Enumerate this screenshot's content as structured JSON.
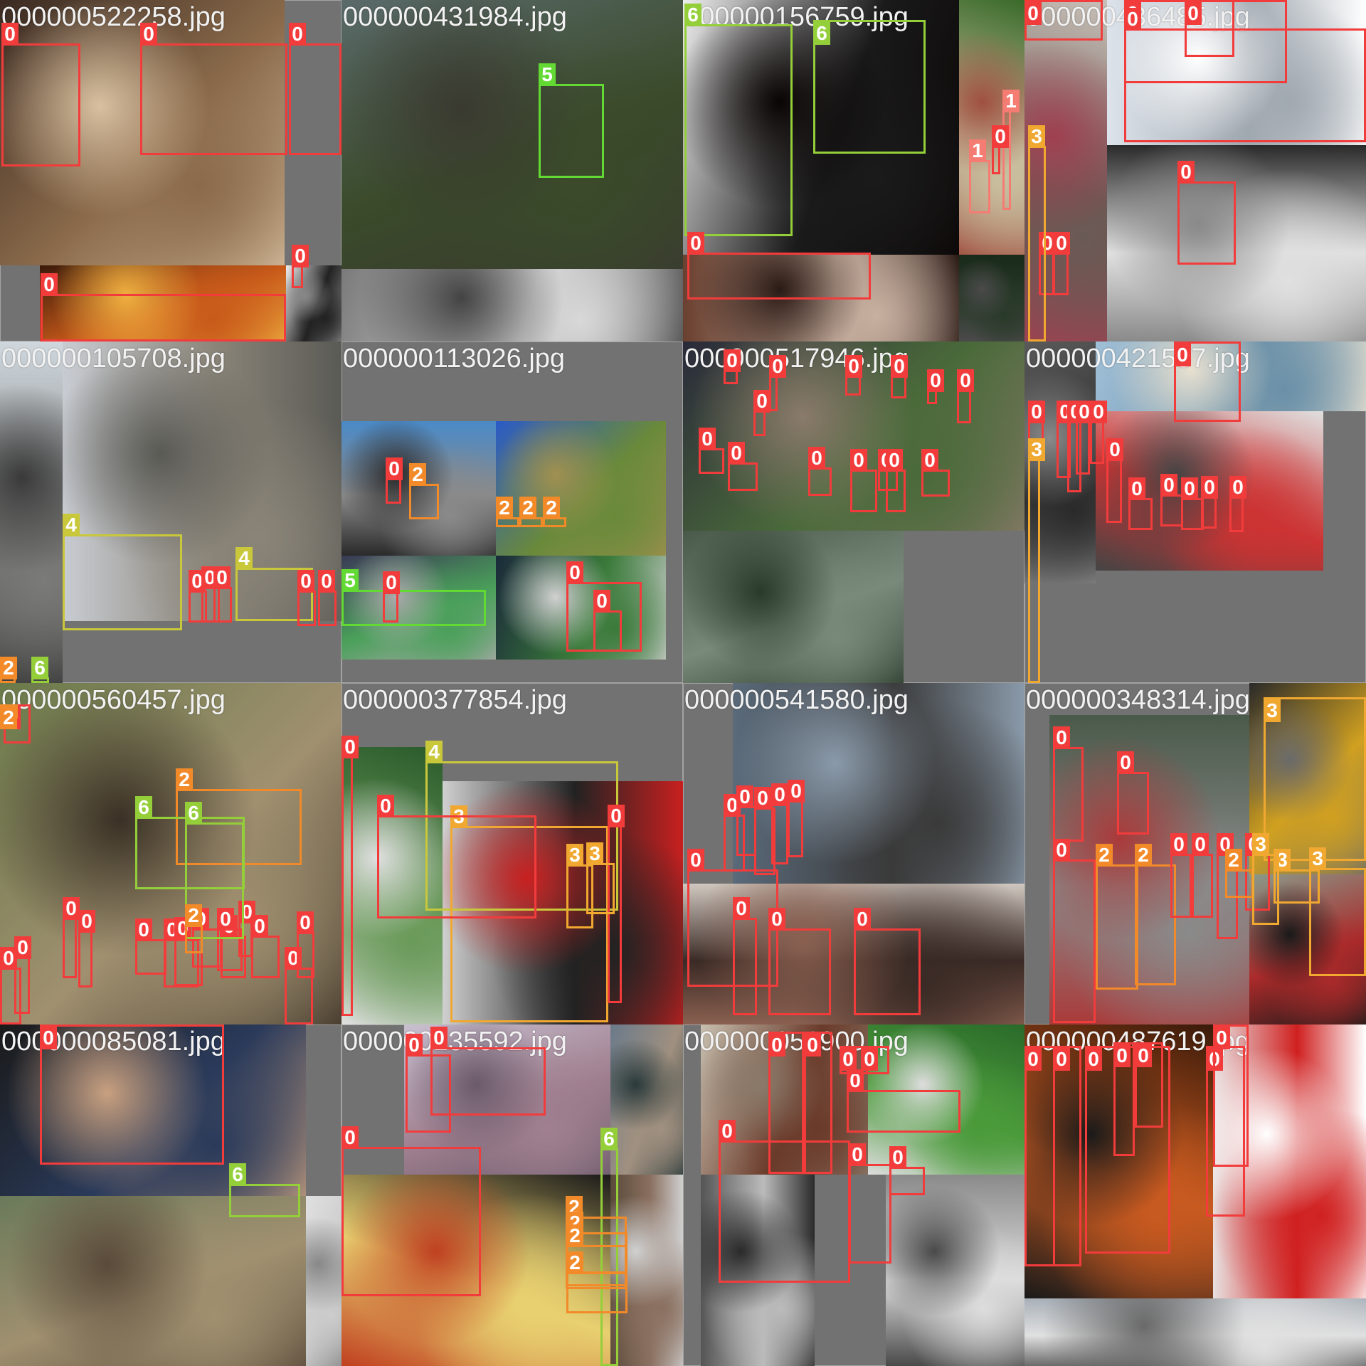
{
  "tiles": [
    {
      "filename": "000000522258.jpg",
      "photos": [
        {
          "colors": [
            "#3a2a22",
            "#8a6a4a",
            "#d8c0a0"
          ]
        },
        {
          "colors": [
            "#3a1a0a",
            "#c85a1a",
            "#f0b040"
          ]
        },
        {
          "colors": [
            "#eeeeee",
            "#222222",
            "#888888"
          ]
        }
      ],
      "boxes": [
        {
          "cls": "0"
        },
        {
          "cls": "0"
        },
        {
          "cls": "0"
        },
        {
          "cls": "0"
        },
        {
          "cls": "0"
        }
      ]
    },
    {
      "filename": "000000431984.jpg",
      "photos": [
        {
          "colors": [
            "#5a6a6a",
            "#3a4a2a",
            "#3a3a30"
          ]
        },
        {
          "colors": [
            "#7a7a7a",
            "#d8d8d8",
            "#444444"
          ]
        }
      ],
      "boxes": [
        {
          "cls": "5"
        }
      ]
    },
    {
      "filename": "000000156759.jpg",
      "photos": [
        {
          "colors": [
            "#eeeeee",
            "#1a1a1a",
            "#0a0505"
          ]
        },
        {
          "colors": [
            "#3a6a2a",
            "#c9c0a0",
            "#a05040"
          ]
        },
        {
          "colors": [
            "#6a4030",
            "#c8b0a0",
            "#2a1a15"
          ]
        },
        {
          "colors": [
            "#1a2a1a",
            "#2a3a2a",
            "#4a4a4a"
          ]
        }
      ],
      "boxes": [
        {
          "cls": "6"
        },
        {
          "cls": "6"
        },
        {
          "cls": "1"
        },
        {
          "cls": "1"
        },
        {
          "cls": "0"
        },
        {
          "cls": "0"
        }
      ]
    },
    {
      "filename": "000000436485.jpg",
      "photos": [
        {
          "colors": [
            "#c8c0b8",
            "#6a5a55",
            "#a04050"
          ]
        },
        {
          "colors": [
            "#dde3ea",
            "#a0a8b0",
            "#ffffff"
          ]
        },
        {
          "colors": [
            "#2a2a2a",
            "#e0e0e0",
            "#8a8a8a"
          ]
        }
      ],
      "boxes": [
        {
          "cls": "0"
        },
        {
          "cls": "0"
        },
        {
          "cls": "0"
        },
        {
          "cls": "0"
        },
        {
          "cls": "0"
        },
        {
          "cls": "0"
        },
        {
          "cls": "0"
        },
        {
          "cls": "3"
        }
      ]
    },
    {
      "filename": "000000105708.jpg",
      "photos": [
        {
          "colors": [
            "#c8ccd2",
            "#8a8478",
            "#5a5a55"
          ]
        },
        {
          "colors": [
            "#d0d8de",
            "#7a7a78",
            "#3a3a3a"
          ]
        }
      ],
      "boxes": [
        {
          "cls": "4"
        },
        {
          "cls": "4"
        },
        {
          "cls": "0"
        },
        {
          "cls": "0"
        },
        {
          "cls": "0"
        },
        {
          "cls": "0"
        },
        {
          "cls": "0"
        },
        {
          "cls": "2"
        },
        {
          "cls": "6"
        }
      ]
    },
    {
      "filename": "000000113026.jpg",
      "photos": [
        {
          "colors": [
            "#4a8ac8",
            "#8a8a8a",
            "#2a2a2a"
          ]
        },
        {
          "colors": [
            "#2a5ac8",
            "#6a8a3a",
            "#a09050"
          ]
        },
        {
          "colors": [
            "#3a3a55",
            "#4aa05a",
            "#aaaaaa"
          ]
        },
        {
          "colors": [
            "#1a2a3a",
            "#3a7a3a",
            "#d0d0d0"
          ]
        }
      ],
      "boxes": [
        {
          "cls": "2"
        },
        {
          "cls": "0"
        },
        {
          "cls": "2"
        },
        {
          "cls": "2"
        },
        {
          "cls": "2"
        },
        {
          "cls": "5"
        },
        {
          "cls": "0"
        },
        {
          "cls": "0"
        },
        {
          "cls": "0"
        }
      ]
    },
    {
      "filename": "000000517946.jpg",
      "photos": [
        {
          "colors": [
            "#2a2a3a",
            "#4a6a3a",
            "#8a7a6a"
          ]
        },
        {
          "colors": [
            "#4a5a4a",
            "#7a8a7a",
            "#2a3a2a"
          ]
        }
      ],
      "boxes": [
        {
          "cls": "0"
        },
        {
          "cls": "0"
        },
        {
          "cls": "0"
        },
        {
          "cls": "0"
        },
        {
          "cls": "0"
        },
        {
          "cls": "0"
        },
        {
          "cls": "0"
        },
        {
          "cls": "0"
        },
        {
          "cls": "0"
        },
        {
          "cls": "0"
        },
        {
          "cls": "0"
        },
        {
          "cls": "0"
        },
        {
          "cls": "0"
        },
        {
          "cls": "0"
        }
      ]
    },
    {
      "filename": "000000421557.jpg",
      "photos": [
        {
          "colors": [
            "#5a5a5a",
            "#2a2a2a",
            "#8a8a8a"
          ]
        },
        {
          "colors": [
            "#a0c0d8",
            "#6a90a8",
            "#e8e0d0"
          ]
        },
        {
          "colors": [
            "#e0e0e0",
            "#cc3333",
            "#444444"
          ]
        }
      ],
      "boxes": [
        {
          "cls": "0"
        },
        {
          "cls": "0"
        },
        {
          "cls": "0"
        },
        {
          "cls": "0"
        },
        {
          "cls": "0"
        },
        {
          "cls": "0"
        },
        {
          "cls": "0"
        },
        {
          "cls": "0"
        },
        {
          "cls": "0"
        },
        {
          "cls": "0"
        },
        {
          "cls": "0"
        },
        {
          "cls": "0"
        },
        {
          "cls": "3"
        }
      ]
    },
    {
      "filename": "000000560457.jpg",
      "photos": [
        {
          "colors": [
            "#3a3a3a",
            "#8a8a8a",
            "#3ac060"
          ]
        },
        {
          "colors": [
            "#4a8a3a",
            "#8aaa5a",
            "#c0c0c0"
          ]
        },
        {
          "colors": [
            "#3a4a2a",
            "#e0d030",
            "#f0f0f0"
          ]
        },
        {
          "colors": [
            "#1a1a1a",
            "#3a3a55",
            "#d0a070"
          ]
        },
        {
          "colors": [
            "#6a7a4a",
            "#a09070",
            "#3a3025"
          ]
        }
      ],
      "boxes": [
        {
          "cls": "2"
        },
        {
          "cls": "6"
        },
        {
          "cls": "0"
        },
        {
          "cls": "0"
        },
        {
          "cls": "0"
        },
        {
          "cls": "0"
        },
        {
          "cls": "0"
        },
        {
          "cls": "0"
        },
        {
          "cls": "0"
        },
        {
          "cls": "0"
        },
        {
          "cls": "0"
        },
        {
          "cls": "0"
        },
        {
          "cls": "0"
        },
        {
          "cls": "0"
        },
        {
          "cls": "0"
        },
        {
          "cls": "0"
        },
        {
          "cls": "0"
        },
        {
          "cls": "6"
        },
        {
          "cls": "2"
        },
        {
          "cls": "2"
        }
      ]
    },
    {
      "filename": "000000377854.jpg",
      "photos": [
        {
          "colors": [
            "#2a5a2a",
            "#6a9a5a",
            "#e0e0e0"
          ]
        },
        {
          "colors": [
            "#d0d0d0",
            "#222222",
            "#c82020"
          ]
        }
      ],
      "boxes": [
        {
          "cls": "0"
        },
        {
          "cls": "4"
        },
        {
          "cls": "3"
        },
        {
          "cls": "0"
        },
        {
          "cls": "0"
        },
        {
          "cls": "3"
        },
        {
          "cls": "3"
        }
      ]
    },
    {
      "filename": "000000541580.jpg",
      "photos": [
        {
          "colors": [
            "#5a6a7a",
            "#3a3a3a",
            "#8a9aaa"
          ]
        },
        {
          "colors": [
            "#d0c8c0",
            "#3a2a25",
            "#8a6050"
          ]
        }
      ],
      "boxes": [
        {
          "cls": "0"
        },
        {
          "cls": "0"
        },
        {
          "cls": "0"
        },
        {
          "cls": "0"
        },
        {
          "cls": "0"
        },
        {
          "cls": "0"
        },
        {
          "cls": "0"
        },
        {
          "cls": "0"
        },
        {
          "cls": "0"
        }
      ]
    },
    {
      "filename": "000000348314.jpg",
      "photos": [
        {
          "colors": [
            "#4a5a4a",
            "#8a8a8a",
            "#aa3a3a"
          ]
        },
        {
          "colors": [
            "#2a2a2a",
            "#d0a020",
            "#6a6a6a"
          ]
        },
        {
          "colors": [
            "#8a9a8a",
            "#aa2a2a",
            "#1a1a1a"
          ]
        }
      ],
      "boxes": [
        {
          "cls": "0"
        },
        {
          "cls": "0"
        },
        {
          "cls": "3"
        },
        {
          "cls": "0"
        },
        {
          "cls": "2"
        },
        {
          "cls": "2"
        },
        {
          "cls": "0"
        },
        {
          "cls": "0"
        },
        {
          "cls": "0"
        },
        {
          "cls": "0"
        },
        {
          "cls": "3"
        },
        {
          "cls": "3"
        },
        {
          "cls": "2"
        },
        {
          "cls": "3"
        }
      ]
    },
    {
      "filename": "000000085081.jpg",
      "photos": [
        {
          "colors": [
            "#1a1a1a",
            "#2a3a5a",
            "#c8a080"
          ]
        },
        {
          "colors": [
            "#6a7a5a",
            "#a09070",
            "#5a4a3a"
          ]
        },
        {
          "colors": [
            "#e0e0e0",
            "#cccccc",
            "#888888"
          ]
        }
      ],
      "boxes": [
        {
          "cls": "0"
        },
        {
          "cls": "6"
        }
      ]
    },
    {
      "filename": "000000135592.jpg",
      "photos": [
        {
          "colors": [
            "#c8c0d0",
            "#a08090",
            "#6a5a6a"
          ]
        },
        {
          "colors": [
            "#6a7a8a",
            "#a09080",
            "#2a3a3a"
          ]
        },
        {
          "colors": [
            "#1a1a1a",
            "#e8d070",
            "#c04020"
          ]
        },
        {
          "colors": [
            "#5a4a3a",
            "#8a7060",
            "#d0d0d0"
          ]
        }
      ],
      "boxes": [
        {
          "cls": "0"
        },
        {
          "cls": "0"
        },
        {
          "cls": "0"
        },
        {
          "cls": "6"
        },
        {
          "cls": "2"
        },
        {
          "cls": "2"
        },
        {
          "cls": "2"
        },
        {
          "cls": "2"
        }
      ]
    },
    {
      "filename": "000000051900.jpg",
      "photos": [
        {
          "colors": [
            "#c8c0b0",
            "#6a3a2a",
            "#8a7a6a"
          ]
        },
        {
          "colors": [
            "#2a6a2a",
            "#4a9a3a",
            "#dddddd"
          ]
        },
        {
          "colors": [
            "#555555",
            "#bbbbbb",
            "#2a2a2a"
          ]
        },
        {
          "colors": [
            "#8a8a8a",
            "#dddddd",
            "#4a4a4a"
          ]
        }
      ],
      "boxes": [
        {
          "cls": "0"
        },
        {
          "cls": "0"
        },
        {
          "cls": "0"
        },
        {
          "cls": "0"
        },
        {
          "cls": "0"
        },
        {
          "cls": "0"
        },
        {
          "cls": "0"
        },
        {
          "cls": "0"
        }
      ]
    },
    {
      "filename": "000000487619.jpg",
      "photos": [
        {
          "colors": [
            "#3a1a0a",
            "#c85a20",
            "#1a1a1a"
          ]
        },
        {
          "colors": [
            "#e8e0e0",
            "#d02020",
            "#ffffff"
          ]
        },
        {
          "colors": [
            "#a8b0b8",
            "#e0e0e0",
            "#6a6a6a"
          ]
        }
      ],
      "boxes": [
        {
          "cls": "0"
        },
        {
          "cls": "0"
        },
        {
          "cls": "0"
        },
        {
          "cls": "0"
        },
        {
          "cls": "0"
        },
        {
          "cls": "0"
        },
        {
          "cls": "0"
        }
      ]
    }
  ]
}
